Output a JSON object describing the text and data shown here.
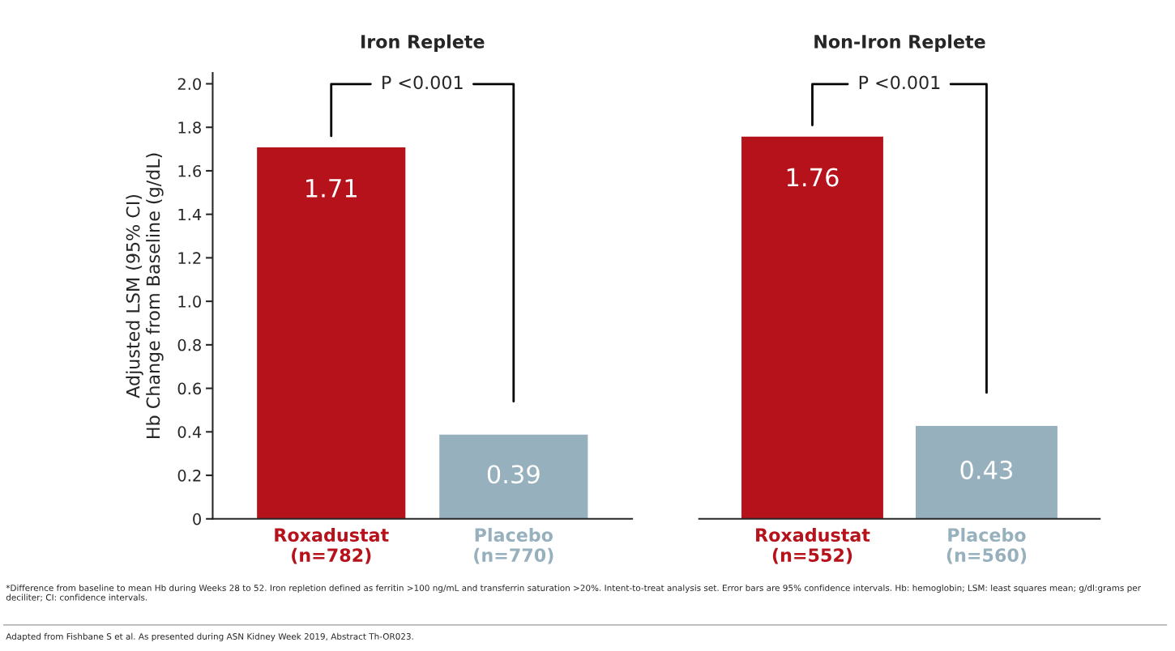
{
  "chart_data": [
    {
      "type": "bar",
      "title": "Iron Replete",
      "ylabel": "Adjusted LSM (95% CI)\nHb Change from Baseline (g/dL)",
      "categories": [
        "Roxadustat\n(n=782)",
        "Placebo\n(n=770)"
      ],
      "values": [
        1.71,
        0.39
      ],
      "colors": [
        "#b5121b",
        "#97b0bd"
      ],
      "ylim": [
        0,
        2.05
      ],
      "yticks": [
        0,
        {
          "value": 0.2,
          "label": "0.2"
        },
        {
          "value": 0.4,
          "label": "0.4"
        },
        {
          "value": 0.6,
          "label": "0.6"
        },
        {
          "value": 0.8,
          "label": "0.8"
        },
        {
          "value": 1.0,
          "label": "1.0"
        },
        {
          "value": 1.2,
          "label": "1.2"
        },
        {
          "value": 1.4,
          "label": "1.4"
        },
        {
          "value": 1.6,
          "label": "1.6"
        },
        {
          "value": 1.8,
          "label": "1.8"
        },
        {
          "value": 2.0,
          "label": "2.0"
        }
      ],
      "data_labels": true,
      "annotations": [
        "P <0.001",
        "*Difference from baseline to mean Hb during Weeks 28 to 52. Iron repletion defined as ferritin >100 ng/mL and transferrin saturation >20%. Intent-to-treat analysis set. Error bars are 95% confidence intervals. Hb: hemoglobin; LSM: least squares mean; g/dl:grams per deciliter; CI: confidence intervals.",
        "Adapted from Fishbane S et al. As presented during ASN Kidney Week 2019, Abstract Th-OR023."
      ]
    },
    {
      "type": "bar",
      "title": "Non-Iron Replete",
      "categories": [
        "Roxadustat\n(n=552)",
        "Placebo\n(n=560)"
      ],
      "values": [
        1.76,
        0.43
      ],
      "colors": [
        "#b5121b",
        "#97b0bd"
      ],
      "tick_labels": "x",
      "data_labels": true,
      "annotations": [
        "P <0.001"
      ]
    }
  ]
}
